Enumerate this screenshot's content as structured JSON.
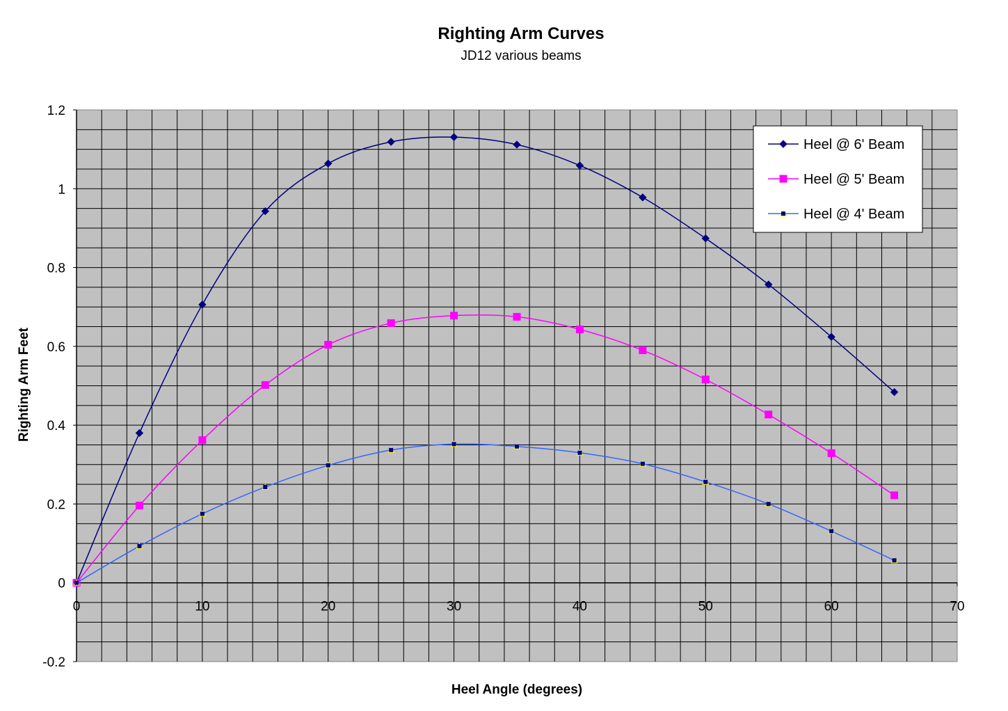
{
  "chart_data": {
    "type": "line",
    "title": "Righting Arm Curves",
    "subtitle": "JD12 various beams",
    "xlabel": "Heel Angle (degrees)",
    "ylabel": "Righting Arm Feet",
    "xlim": [
      0,
      70
    ],
    "ylim": [
      -0.2,
      1.2
    ],
    "x_ticks": [
      "0",
      "10",
      "20",
      "30",
      "40",
      "50",
      "60",
      "70"
    ],
    "y_ticks": [
      "-0.2",
      "0",
      "0.2",
      "0.4",
      "0.6",
      "0.8",
      "1",
      "1.2"
    ],
    "grid": true,
    "legend_position": "top-right",
    "plot_background": "#c0c0c0",
    "x": [
      0,
      5,
      10,
      15,
      20,
      25,
      30,
      35,
      40,
      45,
      50,
      55,
      60,
      65
    ],
    "series": [
      {
        "name": "Heel @ 6' Beam",
        "color": "#000080",
        "marker": "diamond",
        "marker_color": "#000080",
        "values": [
          0,
          0.38,
          0.706,
          0.943,
          1.064,
          1.119,
          1.131,
          1.112,
          1.059,
          0.978,
          0.874,
          0.757,
          0.624,
          0.484
        ]
      },
      {
        "name": "Heel @ 5' Beam",
        "color": "#ff00ff",
        "marker": "square",
        "marker_color": "#ff00ff",
        "values": [
          0,
          0.196,
          0.362,
          0.502,
          0.604,
          0.659,
          0.678,
          0.675,
          0.643,
          0.59,
          0.516,
          0.427,
          0.329,
          0.222
        ]
      },
      {
        "name": "Heel @ 4' Beam",
        "color": "#3366ff",
        "marker": "triangle",
        "marker_color": "#ffff00",
        "values": [
          0,
          0.093,
          0.175,
          0.243,
          0.298,
          0.337,
          0.352,
          0.346,
          0.33,
          0.302,
          0.256,
          0.2,
          0.131,
          0.057
        ]
      }
    ]
  }
}
